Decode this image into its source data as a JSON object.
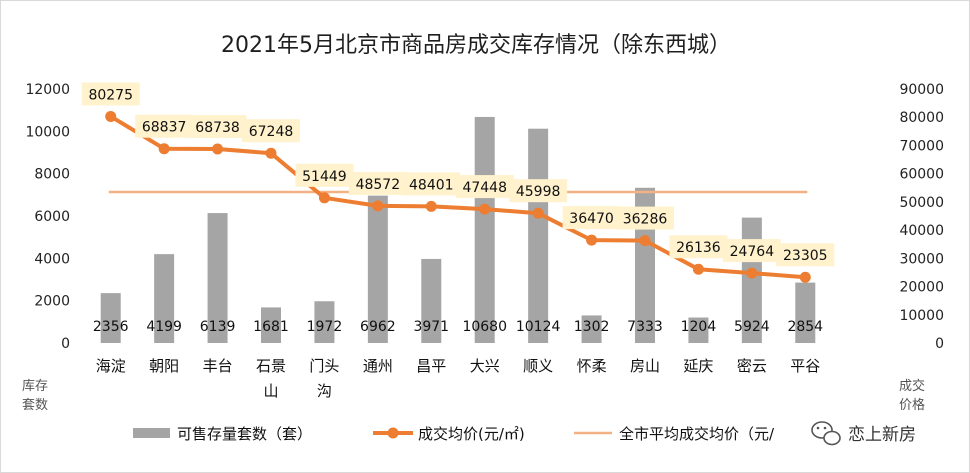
{
  "chart_data": {
    "type": "bar",
    "title": "2021年5月北京市商品房成交库存情况（除东西城）",
    "categories": [
      "海淀",
      "朝阳",
      "丰台",
      "石景山",
      "门头沟",
      "通州",
      "昌平",
      "大兴",
      "顺义",
      "怀柔",
      "房山",
      "延庆",
      "密云",
      "平谷"
    ],
    "category_lines": [
      [
        "海淀"
      ],
      [
        "朝阳"
      ],
      [
        "丰台"
      ],
      [
        "石景",
        "山"
      ],
      [
        "门头",
        "沟"
      ],
      [
        "通州"
      ],
      [
        "昌平"
      ],
      [
        "大兴"
      ],
      [
        "顺义"
      ],
      [
        "怀柔"
      ],
      [
        "房山"
      ],
      [
        "延庆"
      ],
      [
        "密云"
      ],
      [
        "平谷"
      ]
    ],
    "series": [
      {
        "name": "可售存量套数（套）",
        "kind": "bar",
        "axis": "left",
        "color": "#a5a5a5",
        "values": [
          2356,
          4199,
          6139,
          1681,
          1972,
          6962,
          3971,
          10680,
          10124,
          1302,
          7333,
          1204,
          5924,
          2854
        ]
      },
      {
        "name": "成交均价(元/㎡)",
        "kind": "line",
        "axis": "right",
        "color": "#ed7d31",
        "values": [
          80275,
          68837,
          68738,
          67248,
          51449,
          48572,
          48401,
          47448,
          45998,
          36470,
          36286,
          26136,
          24764,
          23305
        ]
      },
      {
        "name": "全市平均成交均价（元/㎡）",
        "kind": "reference-line",
        "axis": "right",
        "color": "#f4b183",
        "value": 53500
      }
    ],
    "left_axis": {
      "range": [
        0,
        12000
      ],
      "ticks": [
        0,
        2000,
        4000,
        6000,
        8000,
        10000,
        12000
      ],
      "note_lines": [
        "库存",
        "套数"
      ]
    },
    "right_axis": {
      "range": [
        0,
        90000
      ],
      "ticks": [
        0,
        10000,
        20000,
        30000,
        40000,
        50000,
        60000,
        70000,
        80000,
        90000
      ],
      "note_lines": [
        "成交",
        "价格"
      ]
    },
    "legend_position": "bottom",
    "legend_labels": [
      "可售存量套数（套）",
      "成交均价(元/㎡)",
      "全市平均成交均价（元/"
    ],
    "label_bg": "#fff2cc",
    "grid": false
  },
  "watermark": {
    "text": "恋上新房",
    "icon": "wechat-icon"
  }
}
